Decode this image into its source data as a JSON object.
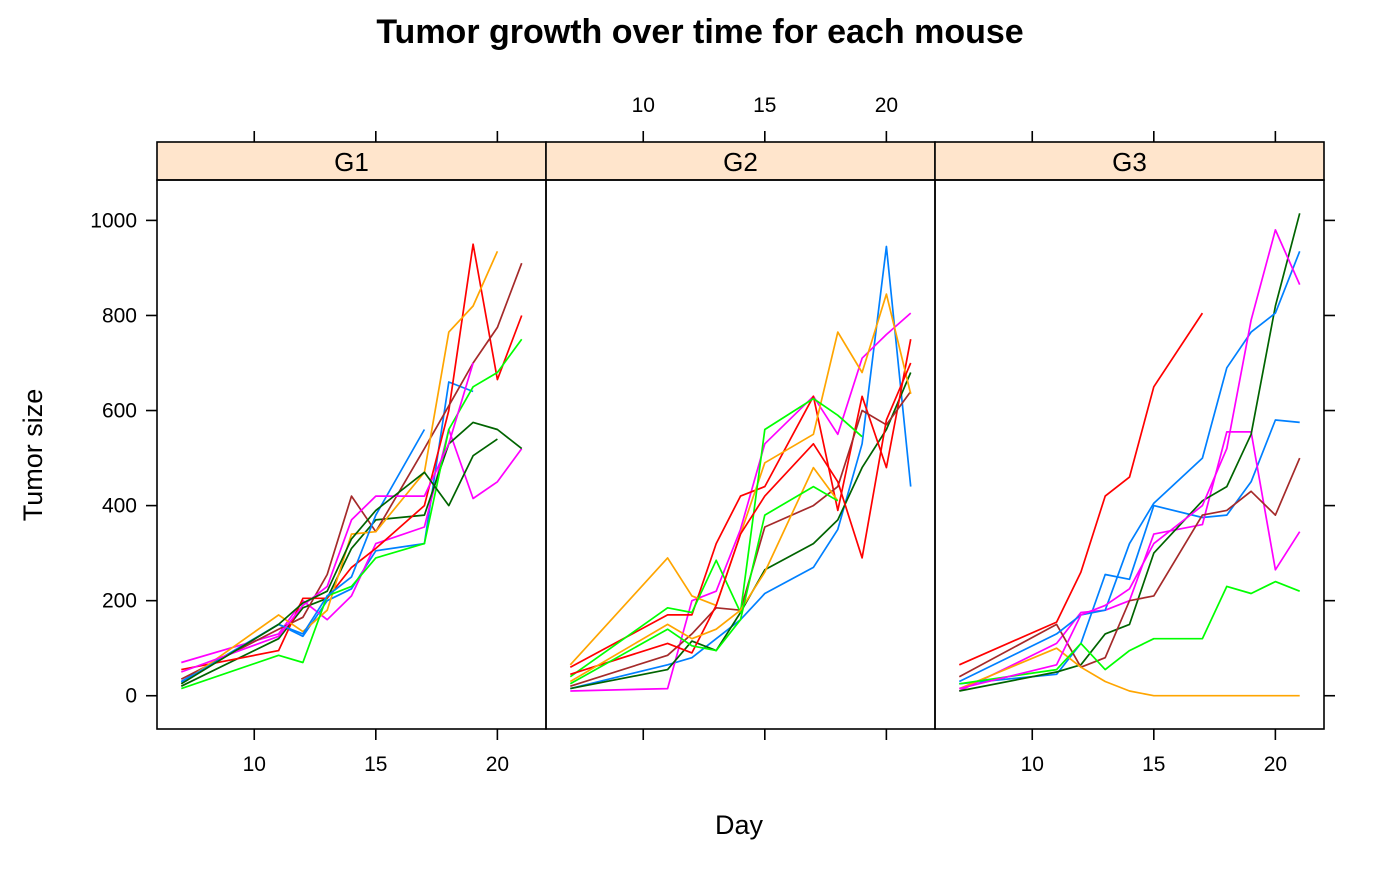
{
  "chart_data": {
    "type": "line",
    "title": "Tumor growth over time for each mouse",
    "xlabel": "Day",
    "ylabel": "Tumor size",
    "x_range": [
      6,
      22
    ],
    "y_range": [
      -70,
      1085
    ],
    "x_ticks": [
      10,
      15,
      20
    ],
    "y_ticks": [
      0,
      200,
      400,
      600,
      800,
      1000
    ],
    "x_tick_labels": [
      "10",
      "15",
      "20"
    ],
    "y_tick_labels": [
      "0",
      "200",
      "400",
      "600",
      "800",
      "1000"
    ],
    "strip_color": "#ffe5cc",
    "grid": false,
    "legend": "none",
    "panels": [
      {
        "label": "G1",
        "series": [
          {
            "color": "#0080ff",
            "x": [
              7,
              11,
              12,
              13,
              14,
              15,
              17,
              18,
              19
            ],
            "y": [
              30,
              150,
              125,
              200,
              225,
              305,
              320,
              660,
              640
            ]
          },
          {
            "color": "#ff00ff",
            "x": [
              7,
              11,
              12,
              13,
              14,
              15,
              17,
              18,
              19,
              20,
              21
            ],
            "y": [
              70,
              130,
              200,
              160,
              210,
              320,
              355,
              560,
              415,
              450,
              520
            ]
          },
          {
            "color": "#006400",
            "x": [
              7,
              11,
              12,
              13,
              14,
              15,
              17,
              18,
              19,
              20,
              21
            ],
            "y": [
              20,
              120,
              185,
              205,
              310,
              370,
              380,
              530,
              575,
              560,
              520
            ]
          },
          {
            "color": "#ff0000",
            "x": [
              7,
              11,
              12,
              13,
              14,
              15,
              17,
              18,
              19,
              20,
              21
            ],
            "y": [
              55,
              95,
              205,
              205,
              270,
              310,
              400,
              600,
              950,
              665,
              800
            ]
          },
          {
            "color": "#a52a2a",
            "x": [
              7,
              11,
              12,
              13,
              14,
              15,
              17,
              18,
              19,
              20,
              21
            ],
            "y": [
              35,
              140,
              165,
              255,
              420,
              345,
              520,
              610,
              700,
              775,
              910
            ]
          },
          {
            "color": "#ffa500",
            "x": [
              7,
              11,
              12,
              13,
              14,
              15,
              17,
              18,
              19,
              20
            ],
            "y": [
              25,
              170,
              135,
              180,
              340,
              345,
              470,
              765,
              820,
              935
            ]
          },
          {
            "color": "#00ff00",
            "x": [
              7,
              11,
              12,
              13,
              14,
              15,
              17,
              18,
              19,
              20,
              21
            ],
            "y": [
              15,
              85,
              70,
              210,
              230,
              290,
              320,
              560,
              650,
              680,
              750
            ]
          },
          {
            "color": "#0080ff",
            "x": [
              7,
              11,
              12,
              13,
              14,
              15,
              17
            ],
            "y": [
              28,
              150,
              130,
              210,
              250,
              380,
              560
            ]
          },
          {
            "color": "#ff00ff",
            "x": [
              7,
              11,
              12,
              13,
              14,
              15,
              17,
              18,
              19
            ],
            "y": [
              50,
              125,
              190,
              230,
              370,
              420,
              420,
              530,
              700
            ]
          },
          {
            "color": "#006400",
            "x": [
              7,
              11,
              12,
              13,
              14,
              15,
              17,
              18,
              19,
              20
            ],
            "y": [
              25,
              150,
              195,
              220,
              330,
              390,
              470,
              400,
              505,
              540
            ]
          }
        ]
      },
      {
        "label": "G2",
        "series": [
          {
            "color": "#0080ff",
            "x": [
              7,
              11,
              12,
              13,
              14,
              15,
              17,
              18,
              19,
              20,
              21
            ],
            "y": [
              15,
              65,
              80,
              120,
              160,
              215,
              270,
              350,
              530,
              945,
              440
            ]
          },
          {
            "color": "#ff00ff",
            "x": [
              7,
              11,
              12,
              13,
              14,
              15,
              17,
              18,
              19,
              20,
              21
            ],
            "y": [
              10,
              15,
              200,
              220,
              350,
              530,
              630,
              550,
              710,
              760,
              805
            ]
          },
          {
            "color": "#006400",
            "x": [
              7,
              11,
              12,
              13,
              14,
              15,
              17,
              18,
              19,
              20,
              21
            ],
            "y": [
              15,
              55,
              115,
              95,
              175,
              265,
              320,
              370,
              480,
              560,
              680
            ]
          },
          {
            "color": "#ff0000",
            "x": [
              7,
              11,
              12,
              13,
              14,
              15,
              17,
              18,
              19,
              20,
              21
            ],
            "y": [
              60,
              170,
              170,
              320,
              420,
              440,
              630,
              390,
              630,
              480,
              750
            ]
          },
          {
            "color": "#a52a2a",
            "x": [
              7,
              11,
              12,
              13,
              14,
              15,
              17,
              18,
              19,
              20,
              21
            ],
            "y": [
              20,
              85,
              130,
              185,
              180,
              355,
              400,
              440,
              600,
              570,
              640
            ]
          },
          {
            "color": "#ffa500",
            "x": [
              7,
              11,
              12,
              13,
              14,
              15,
              17,
              18,
              19,
              20,
              21
            ],
            "y": [
              65,
              290,
              210,
              190,
              340,
              490,
              550,
              765,
              680,
              845,
              635
            ]
          },
          {
            "color": "#00ff00",
            "x": [
              7,
              11,
              12,
              13,
              14,
              15,
              17,
              18,
              19
            ],
            "y": [
              40,
              185,
              175,
              285,
              175,
              560,
              625,
              590,
              545
            ]
          },
          {
            "color": "#ff0000",
            "x": [
              7,
              11,
              12,
              13,
              14,
              15,
              17,
              18,
              19,
              20,
              21
            ],
            "y": [
              45,
              110,
              90,
              190,
              340,
              420,
              530,
              450,
              290,
              580,
              700
            ]
          },
          {
            "color": "#ffa500",
            "x": [
              7,
              11,
              12,
              13,
              14,
              15,
              17,
              18
            ],
            "y": [
              30,
              150,
              120,
              140,
              180,
              260,
              480,
              410
            ]
          },
          {
            "color": "#00ff00",
            "x": [
              7,
              11,
              12,
              13,
              14,
              15,
              17,
              18
            ],
            "y": [
              25,
              140,
              105,
              95,
              160,
              380,
              440,
              410
            ]
          }
        ]
      },
      {
        "label": "G3",
        "series": [
          {
            "color": "#0080ff",
            "x": [
              7,
              11,
              12,
              13,
              14,
              15,
              17,
              18,
              19,
              20,
              21
            ],
            "y": [
              25,
              45,
              110,
              255,
              245,
              400,
              375,
              380,
              450,
              580,
              575
            ]
          },
          {
            "color": "#ff00ff",
            "x": [
              7,
              11,
              12,
              13,
              14,
              15,
              17,
              18,
              19,
              20,
              21
            ],
            "y": [
              10,
              110,
              175,
              180,
              200,
              340,
              360,
              555,
              555,
              265,
              345
            ]
          },
          {
            "color": "#006400",
            "x": [
              7,
              11,
              12,
              13,
              14,
              15,
              17,
              18,
              19,
              20,
              21
            ],
            "y": [
              10,
              50,
              65,
              130,
              150,
              300,
              410,
              440,
              550,
              820,
              1015
            ]
          },
          {
            "color": "#ff0000",
            "x": [
              7,
              11,
              12,
              13,
              14,
              15,
              17
            ],
            "y": [
              65,
              155,
              260,
              420,
              460,
              650,
              805
            ]
          },
          {
            "color": "#a52a2a",
            "x": [
              7,
              11,
              12,
              13,
              14,
              15,
              17,
              18,
              19,
              20,
              21
            ],
            "y": [
              40,
              150,
              60,
              80,
              200,
              210,
              380,
              390,
              430,
              380,
              500
            ]
          },
          {
            "color": "#ffa500",
            "x": [
              7,
              11,
              12,
              13,
              14,
              15,
              17,
              18,
              19,
              20,
              21
            ],
            "y": [
              15,
              100,
              60,
              30,
              10,
              0,
              0,
              0,
              0,
              0,
              0
            ]
          },
          {
            "color": "#00ff00",
            "x": [
              7,
              11,
              12,
              13,
              14,
              15,
              17,
              18,
              19,
              20,
              21
            ],
            "y": [
              25,
              55,
              110,
              55,
              95,
              120,
              120,
              230,
              215,
              240,
              220
            ]
          },
          {
            "color": "#0080ff",
            "x": [
              7,
              11,
              12,
              13,
              14,
              15,
              17,
              18,
              19,
              20,
              21
            ],
            "y": [
              30,
              130,
              170,
              180,
              320,
              405,
              500,
              690,
              765,
              805,
              935
            ]
          },
          {
            "color": "#ff00ff",
            "x": [
              7,
              11,
              12,
              13,
              14,
              15,
              17,
              18,
              19,
              20,
              21
            ],
            "y": [
              15,
              65,
              170,
              190,
              225,
              320,
              400,
              520,
              790,
              980,
              865
            ]
          }
        ]
      }
    ]
  }
}
